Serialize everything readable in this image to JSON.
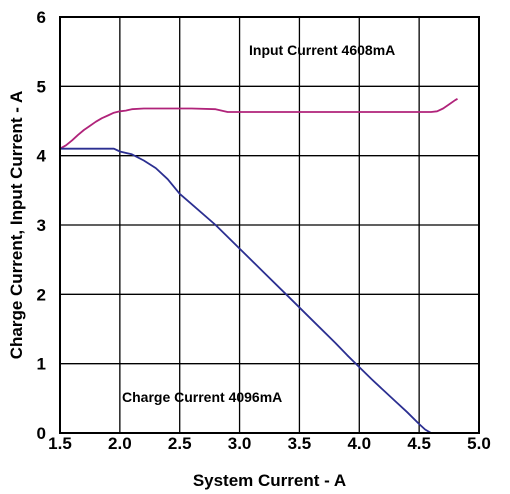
{
  "chart_data": {
    "type": "line",
    "xlabel": "System Current - A",
    "ylabel": "Charge Current, Input Current - A",
    "xlim": [
      1.5,
      5.0
    ],
    "ylim": [
      0,
      6
    ],
    "x_ticks": [
      "1.5",
      "2.0",
      "2.5",
      "3.0",
      "3.5",
      "4.0",
      "4.5",
      "5.0"
    ],
    "y_ticks": [
      "0",
      "1",
      "2",
      "3",
      "4",
      "5",
      "6"
    ],
    "grid": true,
    "annotations": [
      {
        "text": "Input Current 4608mA",
        "series": "input"
      },
      {
        "text": "Charge Current 4096mA",
        "series": "charge"
      }
    ],
    "series": [
      {
        "id": "input",
        "color": "#b0237a",
        "x": [
          1.5,
          1.55,
          1.6,
          1.65,
          1.7,
          1.75,
          1.8,
          1.85,
          1.9,
          1.95,
          2.0,
          2.05,
          2.1,
          2.2,
          2.4,
          2.6,
          2.8,
          2.85,
          2.9,
          3.0,
          3.5,
          4.0,
          4.5,
          4.6,
          4.65,
          4.7,
          4.75,
          4.8,
          4.82
        ],
        "y": [
          4.1,
          4.15,
          4.22,
          4.3,
          4.37,
          4.43,
          4.49,
          4.54,
          4.58,
          4.62,
          4.64,
          4.65,
          4.67,
          4.68,
          4.68,
          4.68,
          4.67,
          4.65,
          4.63,
          4.63,
          4.63,
          4.63,
          4.63,
          4.63,
          4.64,
          4.68,
          4.74,
          4.8,
          4.82
        ]
      },
      {
        "id": "charge",
        "color": "#2b2f91",
        "x": [
          1.5,
          1.6,
          1.8,
          1.95,
          2.0,
          2.1,
          2.2,
          2.3,
          2.4,
          2.5,
          2.6,
          2.8,
          3.0,
          3.2,
          3.4,
          3.6,
          3.8,
          3.9,
          4.0,
          4.1,
          4.2,
          4.3,
          4.4,
          4.5,
          4.55,
          4.58,
          4.6,
          4.7,
          4.8
        ],
        "y": [
          4.1,
          4.1,
          4.1,
          4.1,
          4.06,
          4.02,
          3.93,
          3.82,
          3.66,
          3.45,
          3.3,
          3.0,
          2.66,
          2.32,
          1.98,
          1.64,
          1.3,
          1.12,
          0.95,
          0.78,
          0.62,
          0.46,
          0.3,
          0.13,
          0.05,
          0.02,
          0.0,
          0.0,
          0.0
        ]
      }
    ]
  }
}
